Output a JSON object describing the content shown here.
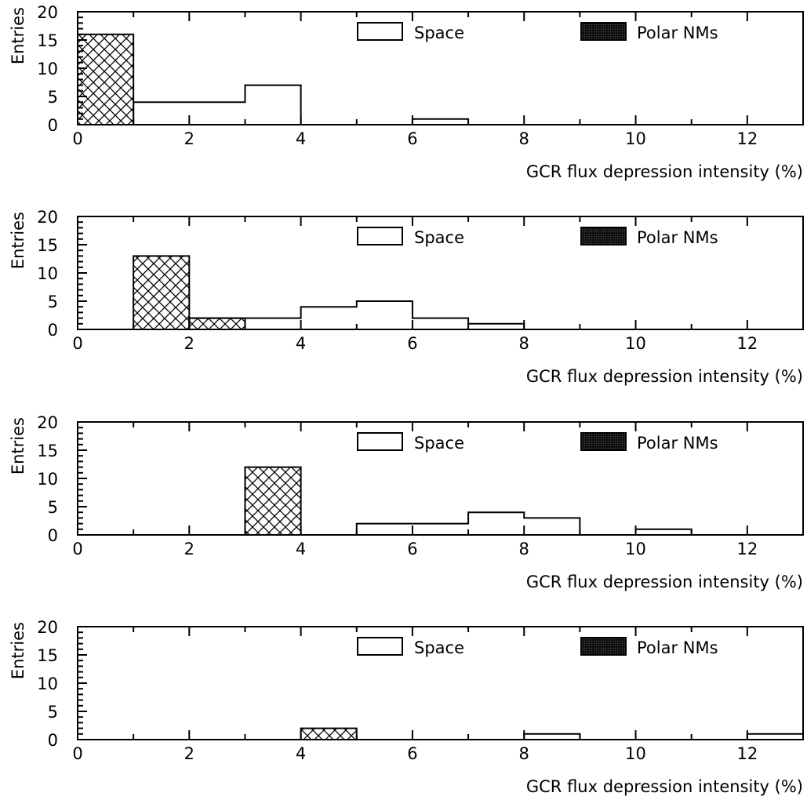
{
  "chart_data": [
    {
      "type": "bar",
      "xlabel": "GCR flux depression intensity (%)",
      "ylabel": "Entries",
      "xlim": [
        0,
        13
      ],
      "ylim": [
        0,
        20
      ],
      "x_ticks": [
        "0",
        "2",
        "4",
        "6",
        "8",
        "10",
        "12"
      ],
      "y_ticks": [
        "0",
        "5",
        "10",
        "15",
        "20"
      ],
      "legend": {
        "position": "top",
        "entries": [
          "Space",
          "Polar NMs"
        ]
      },
      "bin_edges": [
        0,
        1,
        2,
        3,
        4,
        5,
        6,
        7,
        8,
        9,
        10,
        11,
        12,
        13
      ],
      "series": [
        {
          "name": "Space",
          "style": "outline",
          "values": [
            0,
            4,
            4,
            7,
            0,
            0,
            1,
            0,
            0,
            0,
            0,
            0,
            0
          ]
        },
        {
          "name": "Polar NMs",
          "style": "cross-hatched",
          "values": [
            16,
            0,
            0,
            0,
            0,
            0,
            0,
            0,
            0,
            0,
            0,
            0,
            0
          ]
        }
      ]
    },
    {
      "type": "bar",
      "xlabel": "GCR flux depression intensity (%)",
      "ylabel": "Entries",
      "xlim": [
        0,
        13
      ],
      "ylim": [
        0,
        20
      ],
      "x_ticks": [
        "0",
        "2",
        "4",
        "6",
        "8",
        "10",
        "12"
      ],
      "y_ticks": [
        "0",
        "5",
        "10",
        "15",
        "20"
      ],
      "legend": {
        "position": "top",
        "entries": [
          "Space",
          "Polar NMs"
        ]
      },
      "bin_edges": [
        0,
        1,
        2,
        3,
        4,
        5,
        6,
        7,
        8,
        9,
        10,
        11,
        12,
        13
      ],
      "series": [
        {
          "name": "Space",
          "style": "outline",
          "values": [
            0,
            0,
            2,
            2,
            4,
            5,
            2,
            1,
            0,
            0,
            0,
            0,
            0
          ]
        },
        {
          "name": "Polar NMs",
          "style": "cross-hatched",
          "values": [
            0,
            13,
            2,
            0,
            0,
            0,
            0,
            0,
            0,
            0,
            0,
            0,
            0
          ]
        }
      ]
    },
    {
      "type": "bar",
      "xlabel": "GCR flux depression intensity (%)",
      "ylabel": "Entries",
      "xlim": [
        0,
        13
      ],
      "ylim": [
        0,
        20
      ],
      "x_ticks": [
        "0",
        "2",
        "4",
        "6",
        "8",
        "10",
        "12"
      ],
      "y_ticks": [
        "0",
        "5",
        "10",
        "15",
        "20"
      ],
      "legend": {
        "position": "top",
        "entries": [
          "Space",
          "Polar NMs"
        ]
      },
      "bin_edges": [
        0,
        1,
        2,
        3,
        4,
        5,
        6,
        7,
        8,
        9,
        10,
        11,
        12,
        13
      ],
      "series": [
        {
          "name": "Space",
          "style": "outline",
          "values": [
            0,
            0,
            0,
            0,
            0,
            2,
            2,
            4,
            3,
            0,
            1,
            0,
            0
          ]
        },
        {
          "name": "Polar NMs",
          "style": "cross-hatched",
          "values": [
            0,
            0,
            0,
            12,
            0,
            0,
            0,
            0,
            0,
            0,
            0,
            0,
            0
          ]
        }
      ]
    },
    {
      "type": "bar",
      "xlabel": "GCR flux depression intensity (%)",
      "ylabel": "Entries",
      "xlim": [
        0,
        13
      ],
      "ylim": [
        0,
        20
      ],
      "x_ticks": [
        "0",
        "2",
        "4",
        "6",
        "8",
        "10",
        "12"
      ],
      "y_ticks": [
        "0",
        "5",
        "10",
        "15",
        "20"
      ],
      "legend": {
        "position": "top",
        "entries": [
          "Space",
          "Polar NMs"
        ]
      },
      "bin_edges": [
        0,
        1,
        2,
        3,
        4,
        5,
        6,
        7,
        8,
        9,
        10,
        11,
        12,
        13
      ],
      "series": [
        {
          "name": "Space",
          "style": "outline",
          "values": [
            0,
            0,
            0,
            0,
            0,
            0,
            0,
            0,
            1,
            0,
            0,
            0,
            1
          ]
        },
        {
          "name": "Polar NMs",
          "style": "cross-hatched",
          "values": [
            0,
            0,
            0,
            0,
            2,
            0,
            0,
            0,
            0,
            0,
            0,
            0,
            0
          ]
        }
      ]
    }
  ]
}
